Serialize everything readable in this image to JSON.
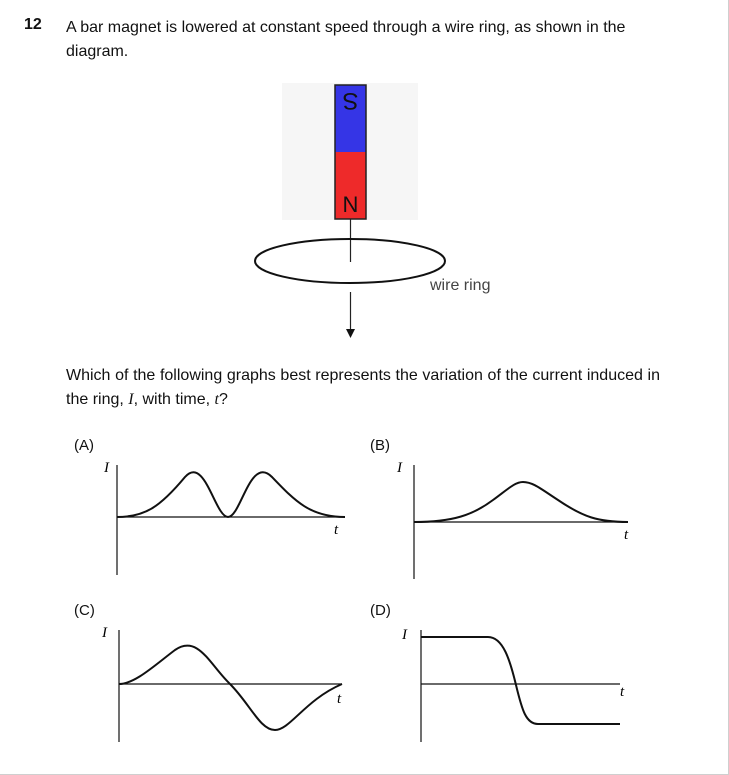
{
  "question": {
    "number": "12",
    "text": "A bar magnet is lowered at constant speed through a wire ring, as shown in the diagram.",
    "prompt_before_I": "Which of the following graphs best represents the variation of the current induced in the ring, ",
    "var_I": "I",
    "prompt_between": ", with time, ",
    "var_t": "t",
    "prompt_end": "?"
  },
  "diagram": {
    "pole_top": "S",
    "pole_bottom": "N",
    "ring_label": "wire ring",
    "colors": {
      "south": "#3535e6",
      "north": "#ee2a2a"
    }
  },
  "options": [
    {
      "label": "(A)",
      "y_axis": "I",
      "x_axis": "t",
      "shape": "double-hump-positive"
    },
    {
      "label": "(B)",
      "y_axis": "I",
      "x_axis": "t",
      "shape": "single-hump-positive"
    },
    {
      "label": "(C)",
      "y_axis": "I",
      "x_axis": "t",
      "shape": "positive-then-negative"
    },
    {
      "label": "(D)",
      "y_axis": "I",
      "x_axis": "t",
      "shape": "high-then-step-down"
    }
  ]
}
